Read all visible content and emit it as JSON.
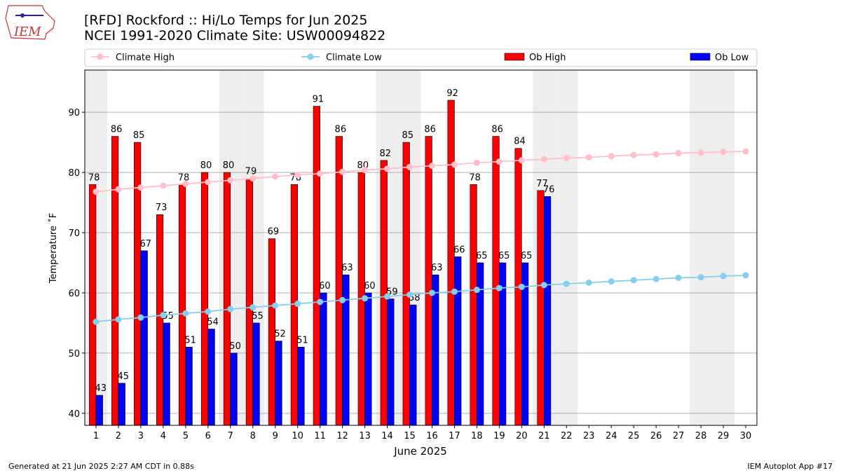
{
  "chart_data": {
    "type": "bar",
    "title": "[RFD] Rockford :: Hi/Lo Temps for Jun 2025",
    "subtitle": "NCEI 1991-2020 Climate Site: USW00094822",
    "logo_text": "IEM",
    "x_label": "June 2025",
    "y_label": "Temperature ˚F",
    "footer_left": "Generated at 21 Jun 2025 2:27 AM CDT in 0.88s",
    "footer_right": "IEM Autoplot App #17",
    "x": [
      1,
      2,
      3,
      4,
      5,
      6,
      7,
      8,
      9,
      10,
      11,
      12,
      13,
      14,
      15,
      16,
      17,
      18,
      19,
      20,
      21,
      22,
      23,
      24,
      25,
      26,
      27,
      28,
      29,
      30
    ],
    "xlim": [
      0.5,
      30.5
    ],
    "xticks": [
      1,
      2,
      3,
      4,
      5,
      6,
      7,
      8,
      9,
      10,
      11,
      12,
      13,
      14,
      15,
      16,
      17,
      18,
      19,
      20,
      21,
      22,
      23,
      24,
      25,
      26,
      27,
      28,
      29,
      30
    ],
    "ylim": [
      38,
      97
    ],
    "yticks": [
      40,
      50,
      60,
      70,
      80,
      90
    ],
    "grid": true,
    "shaded_days": [
      1,
      7,
      8,
      14,
      15,
      21,
      22,
      28,
      29
    ],
    "shade_color": "#eeeeee",
    "series": [
      {
        "name": "Climate High",
        "kind": "line",
        "color": "#ffc0cb",
        "values": [
          76.8,
          77.2,
          77.5,
          77.8,
          78.1,
          78.4,
          78.7,
          79.0,
          79.3,
          79.6,
          79.8,
          80.1,
          80.4,
          80.6,
          80.9,
          81.1,
          81.3,
          81.6,
          81.8,
          82.0,
          82.2,
          82.4,
          82.5,
          82.7,
          82.9,
          83.0,
          83.2,
          83.3,
          83.4,
          83.5
        ]
      },
      {
        "name": "Climate Low",
        "kind": "line",
        "color": "#87ceeb",
        "values": [
          55.2,
          55.6,
          55.9,
          56.3,
          56.6,
          56.9,
          57.3,
          57.6,
          57.9,
          58.2,
          58.5,
          58.8,
          59.1,
          59.4,
          59.7,
          60.0,
          60.2,
          60.5,
          60.8,
          61.0,
          61.3,
          61.5,
          61.7,
          61.9,
          62.1,
          62.3,
          62.5,
          62.6,
          62.8,
          62.9
        ]
      },
      {
        "name": "Ob High",
        "kind": "bar",
        "color": "#ff0000",
        "values": [
          78,
          86,
          85,
          73,
          78,
          80,
          80,
          79,
          69,
          78,
          91,
          86,
          80,
          82,
          85,
          86,
          92,
          78,
          86,
          84,
          77,
          null,
          null,
          null,
          null,
          null,
          null,
          null,
          null,
          null
        ]
      },
      {
        "name": "Ob Low",
        "kind": "bar",
        "color": "#0000ff",
        "values": [
          43,
          45,
          67,
          55,
          51,
          54,
          50,
          55,
          52,
          51,
          60,
          63,
          60,
          59,
          58,
          63,
          66,
          65,
          65,
          65,
          76,
          null,
          null,
          null,
          null,
          null,
          null,
          null,
          null,
          null
        ]
      }
    ]
  }
}
